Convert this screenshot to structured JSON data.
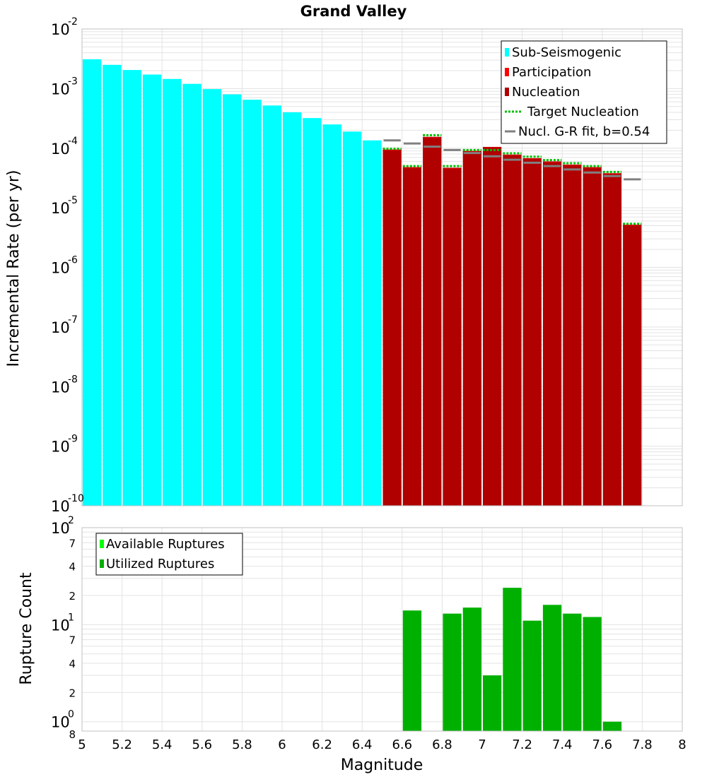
{
  "colors": {
    "sub_seismogenic": "#00ffff",
    "participation": "#ff0000",
    "nucleation": "#b00000",
    "target_nucleation": "#00c000",
    "gr_fit": "#808080",
    "available": "#00ff00",
    "utilized": "#00b000",
    "grid": "#e3e3e3",
    "frame": "#c0c0c0"
  },
  "chart_data": [
    {
      "type": "bar",
      "title": "Grand Valley",
      "xlabel": "",
      "ylabel": "Incremental Rate (per yr)",
      "yscale": "log",
      "xlim": [
        5,
        8
      ],
      "ylim": [
        1e-10,
        0.01
      ],
      "bin_width": 0.1,
      "y_tick_labels": [
        {
          "base": "10",
          "exp": "-10"
        },
        {
          "base": "10",
          "exp": "-9"
        },
        {
          "base": "10",
          "exp": "-8"
        },
        {
          "base": "10",
          "exp": "-7"
        },
        {
          "base": "10",
          "exp": "-6"
        },
        {
          "base": "10",
          "exp": "-5"
        },
        {
          "base": "10",
          "exp": "-4"
        },
        {
          "base": "10",
          "exp": "-3"
        },
        {
          "base": "10",
          "exp": "-2"
        }
      ],
      "legend": {
        "position": "top-right",
        "entries": [
          {
            "label": "Sub-Seismogenic",
            "style": "box",
            "color_key": "sub_seismogenic"
          },
          {
            "label": "Participation",
            "style": "box",
            "color_key": "participation"
          },
          {
            "label": "Nucleation",
            "style": "box",
            "color_key": "nucleation"
          },
          {
            "label": "Target Nucleation",
            "style": "dotted",
            "color_key": "target_nucleation"
          },
          {
            "label": "Nucl. G-R fit, b=0.54",
            "style": "line",
            "color_key": "gr_fit"
          }
        ]
      },
      "series": [
        {
          "name": "Sub-Seismogenic",
          "x": [
            5.05,
            5.15,
            5.25,
            5.35,
            5.45,
            5.55,
            5.65,
            5.75,
            5.85,
            5.95,
            6.05,
            6.15,
            6.25,
            6.35,
            6.45
          ],
          "values": [
            0.0031,
            0.0025,
            0.00205,
            0.00172,
            0.00145,
            0.0012,
            0.00098,
            0.0008,
            0.00065,
            0.00052,
            0.0004,
            0.00032,
            0.00025,
            0.00019,
            0.000135
          ]
        },
        {
          "name": "Nucleation",
          "x": [
            6.55,
            6.65,
            6.75,
            6.85,
            6.95,
            7.05,
            7.15,
            7.25,
            7.35,
            7.45,
            7.55,
            7.65,
            7.75
          ],
          "values": [
            9.5e-05,
            4.8e-05,
            0.000155,
            4.7e-05,
            9e-05,
            0.000105,
            7.8e-05,
            6.8e-05,
            6e-05,
            5.3e-05,
            4.8e-05,
            3.8e-05,
            5.2e-06
          ]
        },
        {
          "name": "Target Nucleation",
          "x": [
            6.55,
            6.65,
            6.75,
            6.85,
            6.95,
            7.05,
            7.15,
            7.25,
            7.35,
            7.45,
            7.55,
            7.65,
            7.75
          ],
          "values": [
            9.8e-05,
            5e-05,
            0.000165,
            5e-05,
            9.3e-05,
            9.3e-05,
            8.2e-05,
            7.2e-05,
            6.3e-05,
            5.6e-05,
            5e-05,
            4e-05,
            5.4e-06
          ]
        },
        {
          "name": "Nucl. G-R fit, b=0.54",
          "x": [
            6.55,
            6.65,
            6.75,
            6.85,
            6.95,
            7.05,
            7.15,
            7.25,
            7.35,
            7.45,
            7.55,
            7.65,
            7.75
          ],
          "values": [
            0.000135,
            0.00012,
            0.000106,
            9.3e-05,
            8.3e-05,
            7.3e-05,
            6.4e-05,
            5.7e-05,
            5e-05,
            4.4e-05,
            3.9e-05,
            3.4e-05,
            3e-05
          ]
        },
        {
          "name": "Participation",
          "x": [
            6.55,
            6.65,
            6.75,
            6.85,
            6.95,
            7.05,
            7.15,
            7.25,
            7.35,
            7.45,
            7.55,
            7.65,
            7.75
          ],
          "values": [
            9.5e-05,
            4.8e-05,
            0.000155,
            4.7e-05,
            9e-05,
            0.000105,
            7.8e-05,
            6.8e-05,
            6e-05,
            5.3e-05,
            4.8e-05,
            3.8e-05,
            5.2e-06
          ]
        }
      ]
    },
    {
      "type": "bar",
      "title": "",
      "xlabel": "Magnitude",
      "ylabel": "Rupture Count",
      "yscale": "log",
      "xlim": [
        5,
        8
      ],
      "ylim": [
        0.8,
        100
      ],
      "bin_width": 0.1,
      "x_tick_labels": [
        "5",
        "5.2",
        "5.4",
        "5.6",
        "5.8",
        "6",
        "6.2",
        "6.4",
        "6.6",
        "6.8",
        "7",
        "7.2",
        "7.4",
        "7.6",
        "7.8",
        "8"
      ],
      "y_major_tick_labels": [
        {
          "base": "10",
          "exp": "0"
        },
        {
          "base": "10",
          "exp": "1"
        },
        {
          "base": "10",
          "exp": "2"
        }
      ],
      "y_minor_tick_labels": [
        {
          "value": 0.8,
          "label": "8"
        },
        {
          "value": 2,
          "label": "2"
        },
        {
          "value": 4,
          "label": "4"
        },
        {
          "value": 7,
          "label": "7"
        },
        {
          "value": 20,
          "label": "2"
        },
        {
          "value": 40,
          "label": "4"
        },
        {
          "value": 70,
          "label": "7"
        }
      ],
      "legend": {
        "position": "top-left",
        "entries": [
          {
            "label": "Available Ruptures",
            "style": "box",
            "color_key": "available"
          },
          {
            "label": "Utilized Ruptures",
            "style": "box",
            "color_key": "utilized"
          }
        ]
      },
      "series": [
        {
          "name": "Utilized Ruptures",
          "x": [
            6.55,
            6.65,
            6.75,
            6.85,
            6.95,
            7.05,
            7.15,
            7.25,
            7.35,
            7.45,
            7.55,
            7.65,
            7.75
          ],
          "values": [
            0,
            14,
            0,
            13,
            15,
            3,
            24,
            11,
            16,
            13,
            12,
            1,
            0
          ]
        }
      ]
    }
  ]
}
